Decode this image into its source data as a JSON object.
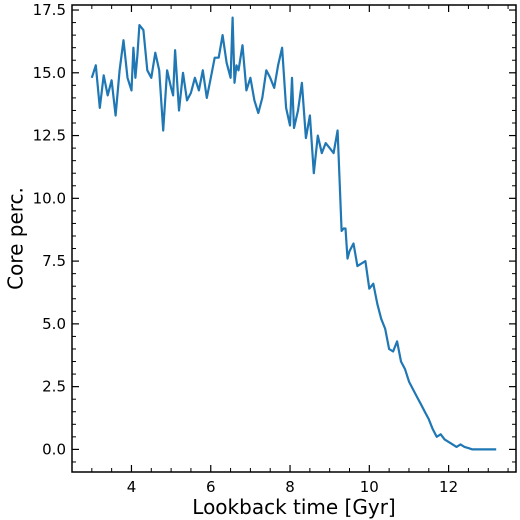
{
  "chart_data": {
    "type": "line",
    "xlabel": "Lookback time [Gyr]",
    "ylabel": "Core perc.",
    "xlim": [
      2.5,
      13.7
    ],
    "ylim": [
      -0.9,
      17.7
    ],
    "xticks": [
      4,
      6,
      8,
      10,
      12
    ],
    "xtick_labels": [
      "4",
      "6",
      "8",
      "10",
      "12"
    ],
    "yticks": [
      0.0,
      2.5,
      5.0,
      7.5,
      10.0,
      12.5,
      15.0,
      17.5
    ],
    "ytick_labels": [
      "0.0",
      "2.5",
      "5.0",
      "7.5",
      "10.0",
      "12.5",
      "15.0",
      "17.5"
    ],
    "x_minor_step": 0.5,
    "y_minor_step": 0.5,
    "grid": false,
    "line_color": "#1f77b4",
    "series": [
      {
        "x": [
          3.0,
          3.1,
          3.2,
          3.3,
          3.4,
          3.5,
          3.6,
          3.7,
          3.8,
          3.9,
          4.0,
          4.05,
          4.1,
          4.15,
          4.2,
          4.3,
          4.4,
          4.5,
          4.6,
          4.7,
          4.8,
          4.9,
          5.0,
          5.05,
          5.1,
          5.2,
          5.3,
          5.4,
          5.5,
          5.6,
          5.7,
          5.8,
          5.9,
          6.0,
          6.1,
          6.2,
          6.3,
          6.4,
          6.5,
          6.55,
          6.6,
          6.65,
          6.7,
          6.8,
          6.9,
          7.0,
          7.1,
          7.2,
          7.3,
          7.4,
          7.5,
          7.6,
          7.7,
          7.8,
          7.9,
          8.0,
          8.05,
          8.1,
          8.2,
          8.3,
          8.4,
          8.5,
          8.6,
          8.7,
          8.8,
          8.9,
          9.0,
          9.1,
          9.2,
          9.3,
          9.35,
          9.4,
          9.45,
          9.5,
          9.6,
          9.7,
          9.8,
          9.9,
          10.0,
          10.1,
          10.2,
          10.3,
          10.4,
          10.5,
          10.6,
          10.7,
          10.8,
          10.9,
          11.0,
          11.1,
          11.2,
          11.3,
          11.4,
          11.5,
          11.6,
          11.7,
          11.8,
          11.9,
          12.0,
          12.1,
          12.2,
          12.3,
          12.4,
          12.5,
          12.6,
          12.8,
          13.0,
          13.2
        ],
        "y": [
          14.8,
          15.3,
          13.6,
          14.9,
          14.1,
          14.7,
          13.3,
          15.1,
          16.3,
          14.8,
          14.3,
          16.0,
          14.8,
          15.7,
          16.9,
          16.7,
          15.1,
          14.8,
          15.8,
          15.1,
          12.7,
          15.1,
          14.4,
          14.1,
          15.9,
          13.5,
          15.0,
          13.9,
          14.2,
          14.8,
          14.3,
          15.1,
          14.0,
          14.8,
          15.6,
          15.6,
          16.5,
          15.4,
          14.8,
          17.2,
          14.6,
          15.3,
          15.1,
          16.1,
          14.3,
          14.8,
          13.9,
          13.4,
          14.0,
          15.1,
          14.8,
          14.4,
          15.3,
          16.0,
          13.6,
          12.9,
          14.8,
          12.8,
          13.5,
          14.6,
          12.4,
          13.3,
          11.0,
          12.5,
          11.8,
          12.2,
          12.0,
          11.8,
          12.7,
          8.7,
          8.8,
          8.8,
          7.6,
          7.9,
          8.2,
          7.3,
          7.4,
          7.5,
          6.4,
          6.6,
          5.8,
          5.2,
          4.8,
          4.0,
          3.9,
          4.3,
          3.5,
          3.2,
          2.7,
          2.4,
          2.1,
          1.8,
          1.5,
          1.2,
          0.8,
          0.5,
          0.6,
          0.4,
          0.3,
          0.2,
          0.1,
          0.2,
          0.1,
          0.05,
          0.0,
          0.0,
          0.0,
          0.0
        ]
      }
    ]
  }
}
